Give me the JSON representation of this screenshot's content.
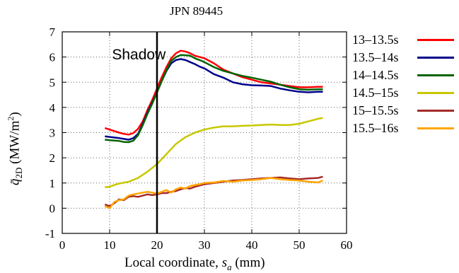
{
  "chart_data": {
    "type": "line",
    "title": "JPN 89445",
    "ylabel_main": "q̄",
    "ylabel_sub": "2D",
    "ylabel_unit": " (MW/m",
    "ylabel_sup": "2",
    "ylabel_close": ")",
    "xlabel_main": "Local coordinate, ",
    "xlabel_var": "s",
    "xlabel_sub": "a",
    "xlabel_unit": " (mm)",
    "xlim": [
      0,
      60
    ],
    "ylim": [
      -1,
      7
    ],
    "xticks": [
      0,
      10,
      20,
      30,
      40,
      50,
      60
    ],
    "yticks": [
      -1,
      0,
      1,
      2,
      3,
      4,
      5,
      6,
      7
    ],
    "grid": true,
    "legend_position": "outside-right",
    "annotation": {
      "text": "Shadow",
      "x": 10.5,
      "y": 5.9
    },
    "vline": {
      "x": 20,
      "color": "#000000"
    },
    "series": [
      {
        "name": "13–13.5s",
        "color": "#ff0000",
        "x": [
          9,
          10,
          12,
          13,
          14,
          15,
          16,
          17,
          18,
          19,
          20,
          21,
          22,
          23,
          24,
          25,
          26,
          27,
          28,
          29,
          30,
          32,
          34,
          36,
          38,
          40,
          42,
          44,
          46,
          48,
          50,
          52,
          54,
          55
        ],
        "y": [
          3.18,
          3.12,
          3.0,
          2.95,
          2.92,
          2.98,
          3.15,
          3.45,
          3.9,
          4.3,
          4.75,
          5.2,
          5.6,
          5.95,
          6.15,
          6.25,
          6.22,
          6.15,
          6.05,
          6.0,
          5.95,
          5.75,
          5.5,
          5.35,
          5.2,
          5.1,
          5.0,
          4.95,
          4.9,
          4.85,
          4.8,
          4.8,
          4.82,
          4.82
        ]
      },
      {
        "name": "13.5–14s",
        "color": "#00008b",
        "x": [
          9,
          10,
          12,
          13,
          14,
          15,
          16,
          17,
          18,
          19,
          20,
          21,
          22,
          23,
          24,
          25,
          26,
          27,
          28,
          29,
          30,
          32,
          34,
          36,
          38,
          40,
          42,
          44,
          46,
          48,
          50,
          52,
          54,
          55
        ],
        "y": [
          2.85,
          2.83,
          2.78,
          2.75,
          2.72,
          2.78,
          2.95,
          3.35,
          3.8,
          4.2,
          4.6,
          5.05,
          5.45,
          5.75,
          5.88,
          5.92,
          5.88,
          5.8,
          5.72,
          5.62,
          5.55,
          5.32,
          5.18,
          5.0,
          4.92,
          4.88,
          4.87,
          4.85,
          4.75,
          4.68,
          4.62,
          4.6,
          4.62,
          4.62
        ]
      },
      {
        "name": "14–14.5s",
        "color": "#006400",
        "x": [
          9,
          10,
          12,
          13,
          14,
          15,
          16,
          17,
          18,
          19,
          20,
          21,
          22,
          23,
          24,
          25,
          26,
          27,
          28,
          29,
          30,
          32,
          34,
          36,
          38,
          40,
          42,
          44,
          46,
          48,
          50,
          52,
          54,
          55
        ],
        "y": [
          2.72,
          2.7,
          2.67,
          2.63,
          2.62,
          2.68,
          2.9,
          3.3,
          3.75,
          4.15,
          4.6,
          5.05,
          5.48,
          5.85,
          6.0,
          6.08,
          6.07,
          6.05,
          5.95,
          5.88,
          5.8,
          5.6,
          5.45,
          5.35,
          5.25,
          5.18,
          5.1,
          5.02,
          4.9,
          4.8,
          4.72,
          4.7,
          4.72,
          4.72
        ]
      },
      {
        "name": "14.5–15s",
        "color": "#c8c800",
        "x": [
          9,
          10,
          11,
          12,
          14,
          16,
          18,
          20,
          22,
          24,
          26,
          28,
          30,
          32,
          34,
          36,
          38,
          40,
          42,
          44,
          46,
          48,
          50,
          52,
          54,
          55
        ],
        "y": [
          0.83,
          0.85,
          0.92,
          0.98,
          1.05,
          1.2,
          1.45,
          1.75,
          2.15,
          2.55,
          2.82,
          3.0,
          3.12,
          3.2,
          3.25,
          3.25,
          3.27,
          3.28,
          3.3,
          3.32,
          3.3,
          3.3,
          3.35,
          3.45,
          3.55,
          3.58
        ]
      },
      {
        "name": "15–15.5s",
        "color": "#a52a2a",
        "x": [
          9,
          10,
          11,
          12,
          13,
          14,
          15,
          16,
          17,
          18,
          19,
          20,
          21,
          22,
          23,
          24,
          25,
          26,
          27,
          28,
          29,
          30,
          32,
          34,
          36,
          38,
          40,
          42,
          44,
          46,
          48,
          50,
          52,
          54,
          55
        ],
        "y": [
          0.15,
          0.08,
          0.2,
          0.35,
          0.32,
          0.45,
          0.48,
          0.45,
          0.5,
          0.55,
          0.52,
          0.55,
          0.6,
          0.6,
          0.65,
          0.68,
          0.75,
          0.8,
          0.78,
          0.85,
          0.9,
          0.95,
          1.0,
          1.05,
          1.1,
          1.12,
          1.15,
          1.18,
          1.2,
          1.22,
          1.18,
          1.15,
          1.18,
          1.2,
          1.25
        ]
      },
      {
        "name": "15.5–16s",
        "color": "#ffa500",
        "x": [
          9,
          10,
          11,
          12,
          13,
          14,
          15,
          16,
          17,
          18,
          19,
          20,
          21,
          22,
          23,
          24,
          25,
          26,
          27,
          28,
          29,
          30,
          32,
          34,
          36,
          38,
          40,
          42,
          44,
          46,
          48,
          50,
          52,
          54,
          55
        ],
        "y": [
          0.08,
          0.0,
          0.25,
          0.32,
          0.35,
          0.5,
          0.55,
          0.58,
          0.62,
          0.65,
          0.62,
          0.58,
          0.65,
          0.72,
          0.62,
          0.75,
          0.82,
          0.78,
          0.88,
          0.92,
          0.95,
          1.0,
          1.02,
          1.08,
          1.05,
          1.1,
          1.12,
          1.15,
          1.2,
          1.15,
          1.12,
          1.1,
          1.05,
          1.02,
          1.1
        ]
      }
    ]
  }
}
